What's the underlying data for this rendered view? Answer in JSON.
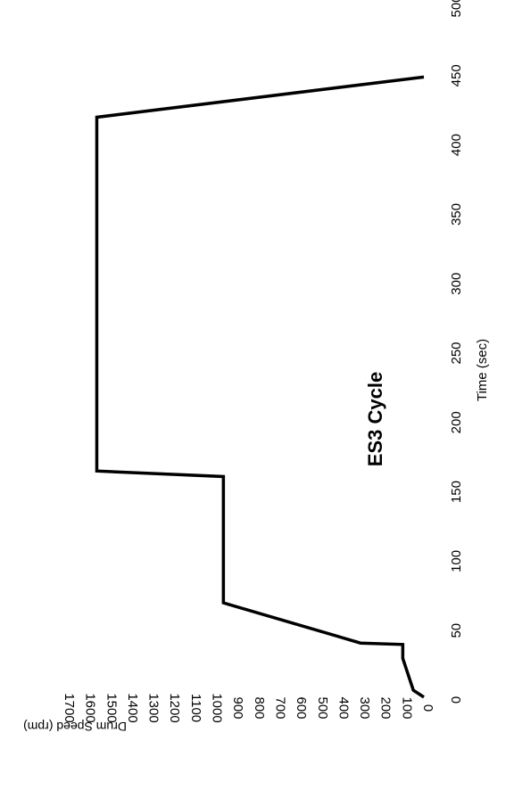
{
  "chart_data": {
    "type": "line",
    "title": "ES3 Cycle",
    "xlabel": "Time (sec)",
    "ylabel": "Drum Speed (rpm)",
    "xlim": [
      0,
      500
    ],
    "ylim": [
      0,
      1700
    ],
    "x_ticks": [
      0,
      50,
      100,
      150,
      200,
      250,
      300,
      350,
      400,
      450,
      500
    ],
    "y_ticks": [
      0,
      100,
      200,
      300,
      400,
      500,
      600,
      700,
      800,
      900,
      1000,
      1100,
      1200,
      1300,
      1400,
      1500,
      1600,
      1700
    ],
    "orientation": "rotated 90 degrees clockwise",
    "grid": false,
    "series": [
      {
        "x": [
          2,
          7,
          30,
          40,
          41,
          70,
          160,
          161,
          165,
          420,
          449
        ],
        "y": [
          0,
          50,
          100,
          100,
          300,
          950,
          950,
          950,
          1550,
          1550,
          0
        ],
        "color": "#000000"
      }
    ]
  }
}
